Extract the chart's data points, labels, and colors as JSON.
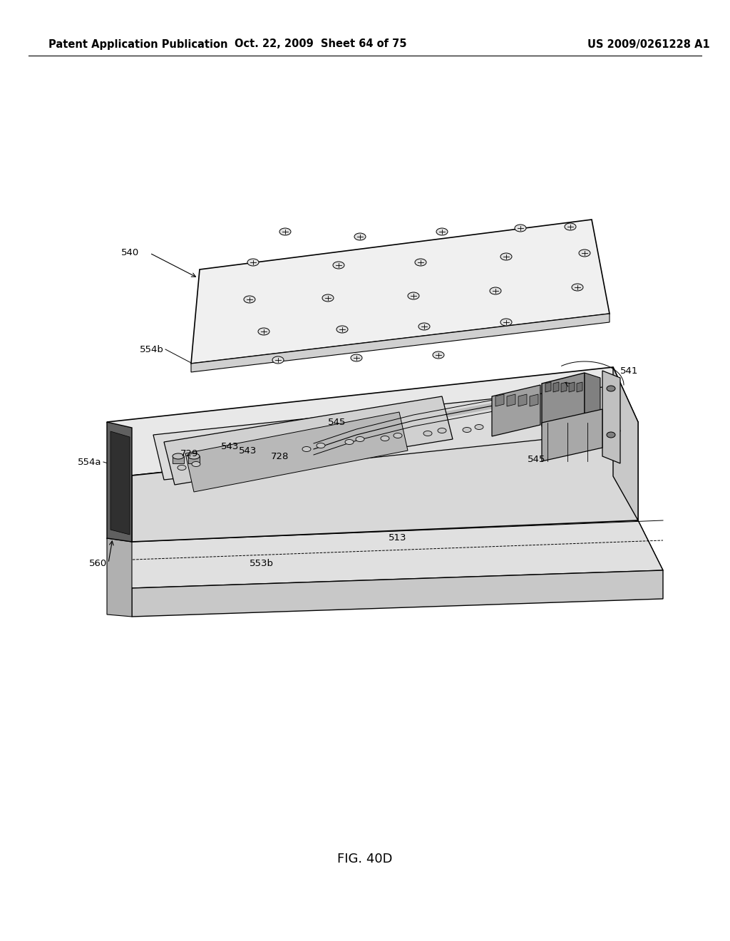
{
  "title": "FIG. 40D",
  "header_left": "Patent Application Publication",
  "header_center": "Oct. 22, 2009  Sheet 64 of 75",
  "header_right": "US 2009/0261228 A1",
  "background_color": "#ffffff",
  "line_color": "#000000",
  "header_fontsize": 10.5,
  "title_fontsize": 13,
  "label_fontsize": 9.5,
  "fig_width": 10.24,
  "fig_height": 13.2,
  "dpi": 100
}
